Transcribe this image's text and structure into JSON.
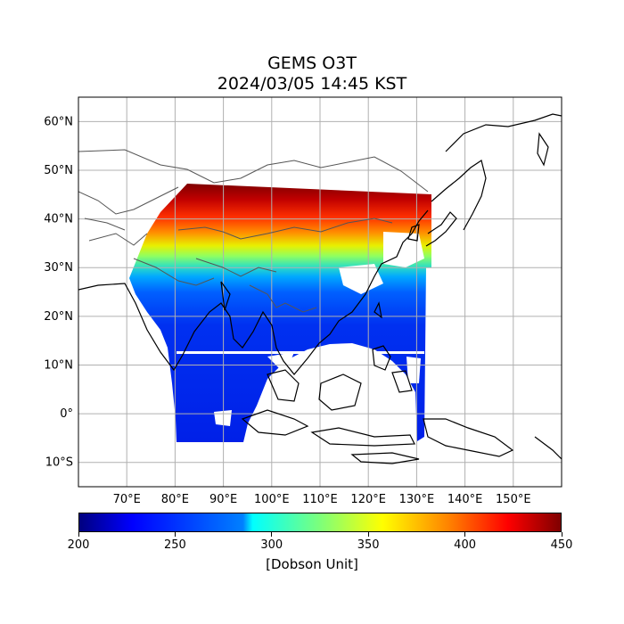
{
  "title": {
    "line1": "GEMS O3T",
    "line2": "2024/03/05 14:45 KST"
  },
  "map": {
    "lon_range": [
      60,
      160
    ],
    "lat_range": [
      -15,
      65
    ],
    "lat_ticks": [
      {
        "value": 60,
        "label": "60°N"
      },
      {
        "value": 50,
        "label": "50°N"
      },
      {
        "value": 40,
        "label": "40°N"
      },
      {
        "value": 30,
        "label": "30°N"
      },
      {
        "value": 20,
        "label": "20°N"
      },
      {
        "value": 10,
        "label": "10°N"
      },
      {
        "value": 0,
        "label": "0°"
      },
      {
        "value": -10,
        "label": "10°S"
      }
    ],
    "lon_ticks": [
      {
        "value": 70,
        "label": "70°E"
      },
      {
        "value": 80,
        "label": "80°E"
      },
      {
        "value": 90,
        "label": "90°E"
      },
      {
        "value": 100,
        "label": "100°E"
      },
      {
        "value": 110,
        "label": "110°E"
      },
      {
        "value": 120,
        "label": "120°E"
      },
      {
        "value": 130,
        "label": "130°E"
      },
      {
        "value": 140,
        "label": "140°E"
      },
      {
        "value": 150,
        "label": "150°E"
      }
    ],
    "grid": true
  },
  "colorbar": {
    "min": 200,
    "max": 450,
    "colormap": "jet",
    "ticks": [
      {
        "value": 200,
        "label": "200"
      },
      {
        "value": 250,
        "label": "250"
      },
      {
        "value": 300,
        "label": "300"
      },
      {
        "value": 350,
        "label": "350"
      },
      {
        "value": 400,
        "label": "400"
      },
      {
        "value": 450,
        "label": "450"
      }
    ],
    "unit": "[Dobson Unit]"
  },
  "colors": {
    "grid": "#b0b0b0",
    "coast": "#000000",
    "border": "#555555"
  }
}
